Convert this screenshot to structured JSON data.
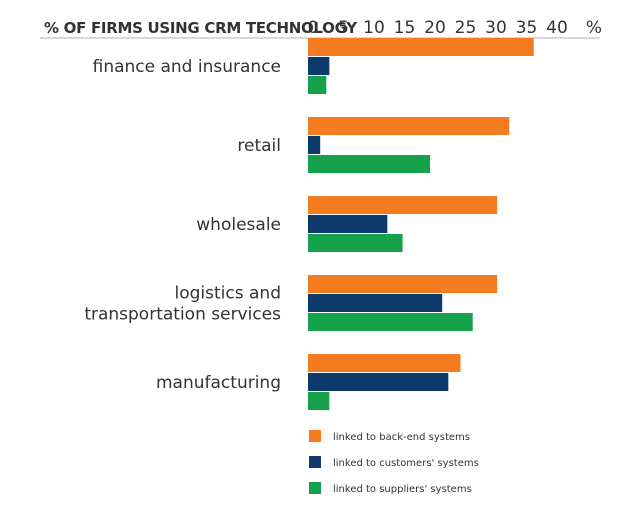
{
  "chart_data": {
    "type": "bar",
    "orientation": "horizontal",
    "title": "% OF FIRMS USING CRM TECHNOLOGY",
    "unit_label": "%",
    "xlim": [
      0,
      40
    ],
    "ticks": [
      "0",
      "5",
      "10",
      "15",
      "20",
      "25",
      "30",
      "35",
      "40"
    ],
    "categories": [
      "finance and insurance",
      "retail",
      "wholesale",
      "logistics and transportation services",
      "manufacturing"
    ],
    "category_lines": [
      [
        "finance and insurance"
      ],
      [
        "retail"
      ],
      [
        "wholesale"
      ],
      [
        "logistics and",
        "transportation services"
      ],
      [
        "manufacturing"
      ]
    ],
    "series": [
      {
        "name": "linked to back-end systems",
        "color": "#f47b20",
        "values": [
          37,
          33,
          31,
          31,
          25
        ]
      },
      {
        "name": "linked to customers' systems",
        "color": "#0e3a6b",
        "values": [
          3.5,
          2,
          13,
          22,
          23
        ]
      },
      {
        "name": "linked to suppliers' systems",
        "color": "#15a04a",
        "values": [
          3,
          20,
          15.5,
          27,
          3.5
        ]
      }
    ]
  }
}
